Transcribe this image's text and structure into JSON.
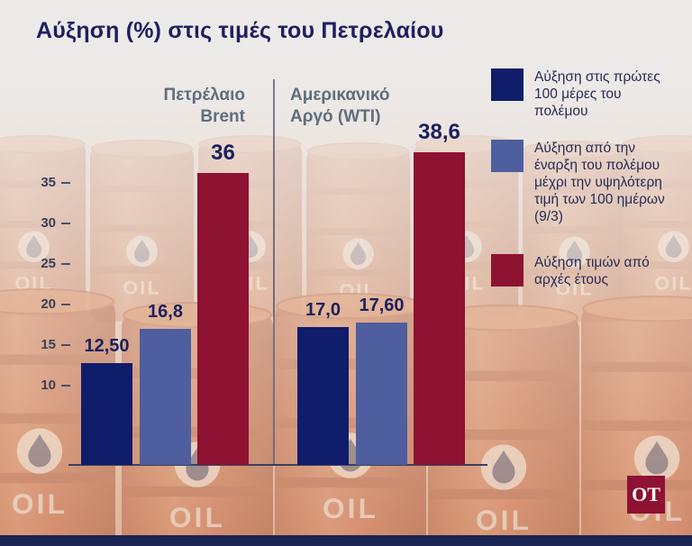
{
  "branding": {
    "logo_text": "OT"
  },
  "colors": {
    "logo_bg": "#8e1232",
    "footer_strip": "#1b2553",
    "title_navy": "#1e2060"
  },
  "chart_data": {
    "type": "bar",
    "title": "Αύξηση (%) στις τιμές του Πετρελαίου",
    "groups": [
      {
        "label": "Πετρέλαιο Brent",
        "values": [
          12.5,
          16.8,
          36
        ],
        "display_values": [
          "12,50",
          "16,8",
          "36"
        ]
      },
      {
        "label": "Αμερικανικό Αργό (WTI)",
        "values": [
          17.0,
          17.6,
          38.6
        ],
        "display_values": [
          "17,0",
          "17,60",
          "38,6"
        ]
      }
    ],
    "series": [
      {
        "name": "Αύξηση στις πρώτες 100 μέρες του πολέμου",
        "color": "#101d6b"
      },
      {
        "name": "Αύξηση από την έναρξη του πολέμου μέχρι την υψηλότερη τιμή των 100 ημέρων (9/3)",
        "color": "#4e5e9e"
      },
      {
        "name": "Αύξηση τιμών από αρχές έτους",
        "color": "#8e1232"
      }
    ],
    "y_ticks": [
      "35",
      "30",
      "25",
      "20",
      "15",
      "10"
    ],
    "ylim": [
      0,
      40
    ],
    "grid": false,
    "legend_position": "right"
  }
}
